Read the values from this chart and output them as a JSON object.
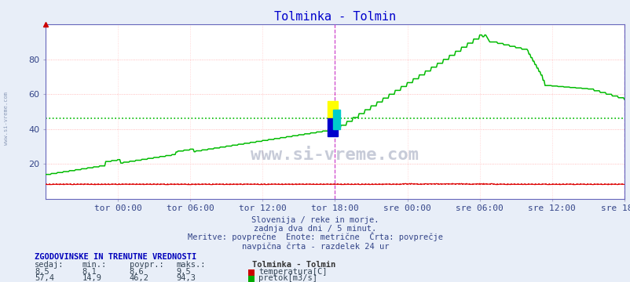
{
  "title": "Tolminka - Tolmin",
  "title_color": "#0000cc",
  "bg_color": "#ffffff",
  "plot_bg_color": "#ffffff",
  "outer_bg": "#e8eef8",
  "x_tick_labels": [
    "tor 00:00",
    "tor 06:00",
    "tor 12:00",
    "tor 18:00",
    "sre 00:00",
    "sre 06:00",
    "sre 12:00",
    "sre 18:00"
  ],
  "x_tick_positions": [
    72,
    144,
    216,
    288,
    360,
    432,
    504,
    576
  ],
  "vline_color": "#cc44cc",
  "vline_positions": [
    288,
    576
  ],
  "avg_flow": 46.2,
  "avg_temp": 8.6,
  "temp_color": "#dd0000",
  "flow_color": "#00bb00",
  "grid_h_color": "#ffaaaa",
  "grid_v_color": "#ffcccc",
  "spine_color": "#6666bb",
  "text_color": "#334488",
  "text_lines": [
    "Slovenija / reke in morje.",
    "zadnja dva dni / 5 minut.",
    "Meritve: povprečne  Enote: metrične  Črta: povprečje",
    "navpična črta - razdelek 24 ur"
  ],
  "table_header": "ZGODOVINSKE IN TRENUTNE VREDNOSTI",
  "col_headers": [
    "sedaj:",
    "min.:",
    "povpr.:",
    "maks.:"
  ],
  "row1_values": [
    "8,5",
    "8,1",
    "8,6",
    "9,5"
  ],
  "row2_values": [
    "57,4",
    "14,9",
    "46,2",
    "94,3"
  ],
  "legend_station": "Tolminka - Tolmin",
  "legend_items": [
    "temperatura[C]",
    "pretok[m3/s]"
  ],
  "legend_colors": [
    "#cc0000",
    "#00aa00"
  ],
  "watermark": "www.si-vreme.com",
  "left_watermark": "www.si-vreme.com",
  "yticks": [
    20,
    40,
    60,
    80
  ],
  "ylim": [
    0,
    100
  ],
  "xlim": [
    0,
    576
  ]
}
